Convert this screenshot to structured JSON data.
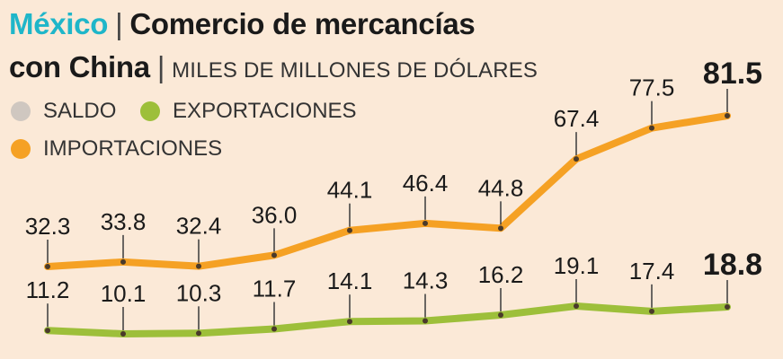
{
  "title": {
    "country": "México",
    "separator": "|",
    "line1": "Comercio de mercancías",
    "line2": "con China",
    "units": "MILES DE MILLONES DE DÓLARES"
  },
  "legend": [
    {
      "label": "SALDO",
      "color": "#cfc7c0"
    },
    {
      "label": "EXPORTACIONES",
      "color": "#9dbf3a"
    },
    {
      "label": "IMPORTACIONES",
      "color": "#f5a124"
    }
  ],
  "chart_data": {
    "type": "line",
    "x": [
      1,
      2,
      3,
      4,
      5,
      6,
      7,
      8,
      9,
      10
    ],
    "series": [
      {
        "name": "IMPORTACIONES",
        "color": "#f5a124",
        "values": [
          32.3,
          33.8,
          32.4,
          36.0,
          44.1,
          46.4,
          44.8,
          67.4,
          77.5,
          81.5
        ]
      },
      {
        "name": "EXPORTACIONES",
        "color": "#9dbf3a",
        "values": [
          11.2,
          10.1,
          10.3,
          11.7,
          14.1,
          14.3,
          16.2,
          19.1,
          17.4,
          18.8
        ]
      }
    ],
    "labels": {
      "IMPORTACIONES": [
        "32.3",
        "33.8",
        "32.4",
        "36.0",
        "44.1",
        "46.4",
        "44.8",
        "67.4",
        "77.5",
        "81.5"
      ],
      "EXPORTACIONES": [
        "11.2",
        "10.1",
        "10.3",
        "11.7",
        "14.1",
        "14.3",
        "16.2",
        "19.1",
        "17.4",
        "18.8"
      ]
    },
    "legend_position": "top-left",
    "grid": false
  }
}
